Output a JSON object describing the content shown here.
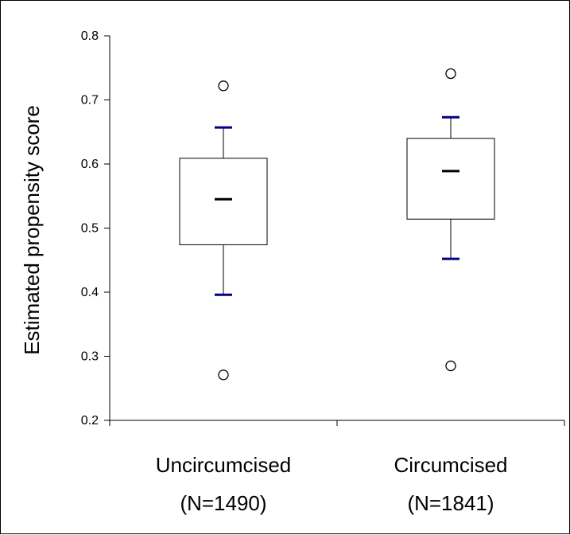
{
  "chart_data": {
    "type": "box",
    "title": "",
    "ylabel": "Estimated propensity score",
    "ylim": [
      0.2,
      0.8
    ],
    "yticks": [
      "0.2",
      "0.3",
      "0.4",
      "0.5",
      "0.6",
      "0.7",
      "0.8"
    ],
    "grid": false,
    "categories": [
      {
        "label": "Uncircumcised",
        "sublabel": "(N=1490)"
      },
      {
        "label": "Circumcised",
        "sublabel": "(N=1841)"
      }
    ],
    "boxes": [
      {
        "name": "Uncircumcised",
        "whisker_low": 0.396,
        "q1": 0.474,
        "median": 0.545,
        "q3": 0.609,
        "whisker_high": 0.657,
        "outliers": [
          0.271,
          0.722
        ]
      },
      {
        "name": "Circumcised",
        "whisker_low": 0.452,
        "q1": 0.514,
        "median": 0.589,
        "q3": 0.64,
        "whisker_high": 0.673,
        "outliers": [
          0.285,
          0.741
        ]
      }
    ],
    "colors": {
      "whisker_cap": "#000080",
      "box": "#000000"
    }
  }
}
